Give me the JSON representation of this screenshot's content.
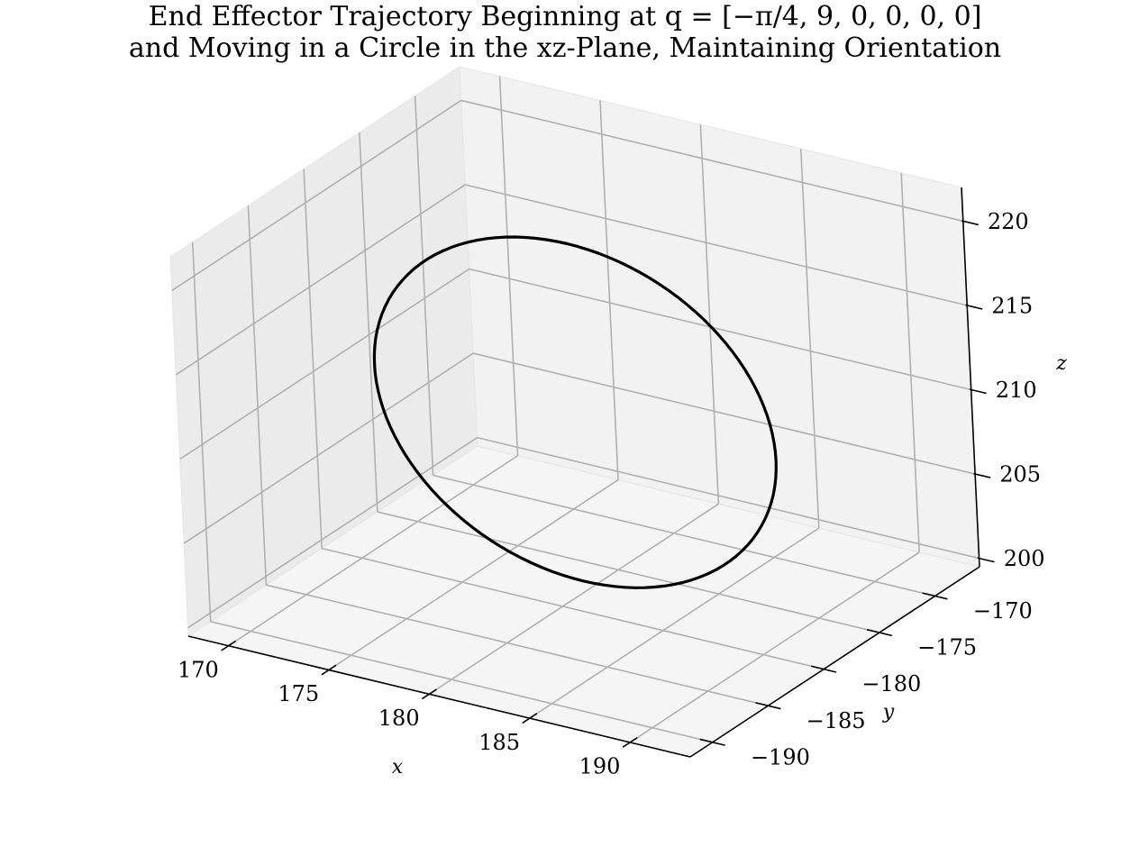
{
  "chart_data": {
    "type": "line",
    "projection": "3d",
    "title": [
      "End Effector Trajectory Beginning at q = [−π/4, 9, 0, 0, 0, 0]",
      "and Moving in a Circle in the xz-Plane, Maintaining Orientation"
    ],
    "xlabel": "x",
    "ylabel": "y",
    "zlabel": "z",
    "xlim": [
      168,
      193
    ],
    "ylim": [
      -192,
      -166
    ],
    "zlim": [
      199.5,
      222
    ],
    "xticks": [
      170,
      175,
      180,
      185,
      190
    ],
    "yticks": [
      -170,
      -175,
      -180,
      -185,
      -190
    ],
    "zticks": [
      200,
      205,
      210,
      215,
      220
    ],
    "xtick_labels": [
      "170",
      "175",
      "180",
      "185",
      "190"
    ],
    "ytick_labels": [
      "−170",
      "−175",
      "−180",
      "−185",
      "−190"
    ],
    "ztick_labels": [
      "200",
      "205",
      "210",
      "215",
      "220"
    ],
    "grid": true,
    "series": [
      {
        "shape": "circle",
        "color": "#000000",
        "plane": "xz",
        "center": {
          "x": 180.4,
          "y": -178.8,
          "z": 210.6
        },
        "radius": 10,
        "points": 120
      }
    ]
  },
  "colors": {
    "pane_back": "#f2f2f2",
    "pane_side": "#ebebeb",
    "pane_floor": "#f5f5f5",
    "grid": "#b0b0b0",
    "axis": "#000000",
    "curve": "#000000"
  }
}
